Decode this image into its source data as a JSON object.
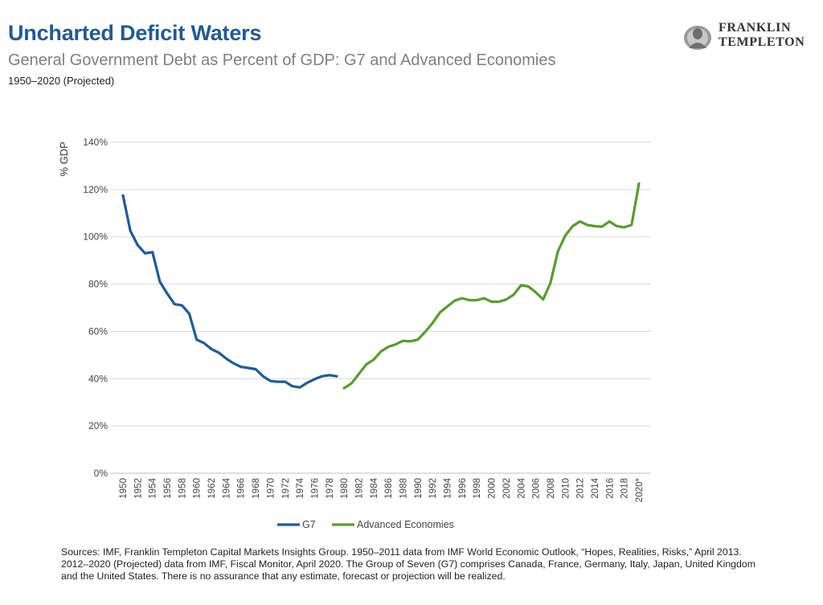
{
  "header": {
    "title": "Uncharted Deficit Waters",
    "subtitle": "General Government Debt as Percent of GDP: G7 and Advanced Economies",
    "range": "1950–2020 (Projected)"
  },
  "brand": {
    "line1": "FRANKLIN",
    "line2": "TEMPLETON"
  },
  "footer": {
    "sources": "Sources: IMF, Franklin Templeton Capital Markets Insights Group. 1950–2011 data from IMF World Economic Outlook, “Hopes, Realities, Risks,” April 2013. 2012–2020 (Projected) data from IMF, Fiscal Monitor, April 2020. The Group of Seven (G7) comprises Canada, France, Germany, Italy, Japan, United Kingdom and the United States. There is no assurance that any estimate, forecast or projection will be realized."
  },
  "chart_data": {
    "type": "line",
    "ylabel": "% GDP",
    "xlabel": "",
    "ylim": [
      0,
      140
    ],
    "yticks": [
      "0%",
      "20%",
      "40%",
      "60%",
      "80%",
      "100%",
      "120%",
      "140%"
    ],
    "grid": true,
    "legend_position": "bottom",
    "x_ticks": [
      "1950",
      "1952",
      "1954",
      "1956",
      "1958",
      "1960",
      "1962",
      "1964",
      "1966",
      "1968",
      "1970",
      "1972",
      "1974",
      "1976",
      "1978",
      "1980",
      "1982",
      "1984",
      "1986",
      "1988",
      "1990",
      "1992",
      "1994",
      "1996",
      "1998",
      "2000",
      "2002",
      "2004",
      "2006",
      "2008",
      "2010",
      "2012",
      "2014",
      "2016",
      "2018",
      "2020*"
    ],
    "series": [
      {
        "name": "G7",
        "color": "#1f5a96",
        "x": [
          1950,
          1951,
          1952,
          1953,
          1954,
          1955,
          1956,
          1957,
          1958,
          1959,
          1960,
          1961,
          1962,
          1963,
          1964,
          1965,
          1966,
          1967,
          1968,
          1969,
          1970,
          1971,
          1972,
          1973,
          1974,
          1975,
          1976,
          1977,
          1978,
          1979
        ],
        "values": [
          117.5,
          102.5,
          96.5,
          93,
          93.5,
          81,
          76,
          71.5,
          71,
          67.5,
          56.5,
          55,
          52.5,
          51,
          48.5,
          46.5,
          45,
          44.5,
          44,
          41,
          39,
          38.7,
          38.7,
          36.8,
          36.3,
          38.3,
          39.8,
          41,
          41.5,
          41
        ]
      },
      {
        "name": "Advanced Economies",
        "color": "#5a9a32",
        "x": [
          1980,
          1981,
          1982,
          1983,
          1984,
          1985,
          1986,
          1987,
          1988,
          1989,
          1990,
          1991,
          1992,
          1993,
          1994,
          1995,
          1996,
          1997,
          1998,
          1999,
          2000,
          2001,
          2002,
          2003,
          2004,
          2005,
          2006,
          2007,
          2008,
          2009,
          2010,
          2011,
          2012,
          2013,
          2014,
          2015,
          2016,
          2017,
          2018,
          2019,
          2020
        ],
        "values": [
          36,
          38,
          42,
          46,
          48,
          51.5,
          53.5,
          54.5,
          56,
          55.8,
          56.5,
          59.8,
          63.5,
          68,
          70.5,
          73,
          74,
          73.2,
          73.2,
          74,
          72.5,
          72.5,
          73.5,
          75.5,
          79.5,
          79,
          76.5,
          73.5,
          80.5,
          93.8,
          100.5,
          104.5,
          106.5,
          105,
          104.5,
          104.3,
          106.5,
          104.5,
          104,
          105,
          122.5
        ]
      }
    ]
  }
}
